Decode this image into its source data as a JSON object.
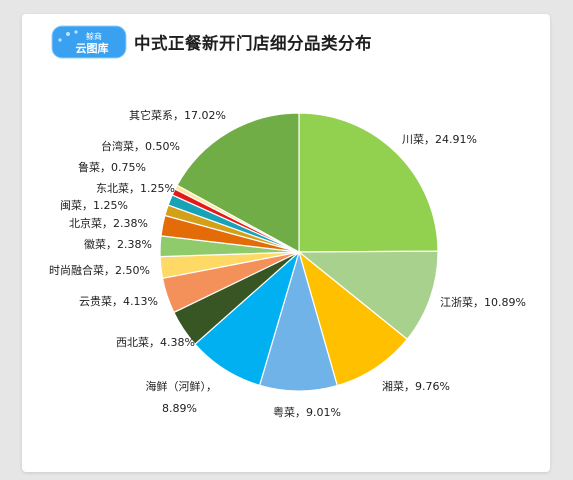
{
  "brand": {
    "line1": "鲸商",
    "line2": "云图库"
  },
  "chart_data": {
    "type": "pie",
    "title": "中式正餐新开门店细分品类分布",
    "slices": [
      {
        "name": "川菜",
        "value": 24.91,
        "label": "川菜，24.91%",
        "color": "#92d050"
      },
      {
        "name": "江浙菜",
        "value": 10.89,
        "label": "江浙菜，10.89%",
        "color": "#a9d18e"
      },
      {
        "name": "湘菜",
        "value": 9.76,
        "label": "湘菜，9.76%",
        "color": "#ffc000"
      },
      {
        "name": "粤菜",
        "value": 9.01,
        "label": "粤菜，9.01%",
        "color": "#6fb3e8"
      },
      {
        "name": "海鲜（河鲜）",
        "value": 8.89,
        "label": "海鲜（河鲜），",
        "label2": "8.89%",
        "color": "#00b0f0"
      },
      {
        "name": "西北菜",
        "value": 4.38,
        "label": "西北菜，4.38%",
        "color": "#375623"
      },
      {
        "name": "云贵菜",
        "value": 4.13,
        "label": "云贵菜，4.13%",
        "color": "#f4915a"
      },
      {
        "name": "时尚融合菜",
        "value": 2.5,
        "label": "时尚融合菜，2.50%",
        "color": "#ffd966"
      },
      {
        "name": "徽菜",
        "value": 2.38,
        "label": "徽菜，2.38%",
        "color": "#8fcb6a"
      },
      {
        "name": "北京菜",
        "value": 2.38,
        "label": "北京菜，2.38%",
        "color": "#e36c09"
      },
      {
        "name": "闽菜",
        "value": 1.25,
        "label": "闽菜，1.25%",
        "color": "#d4a017"
      },
      {
        "name": "东北菜",
        "value": 1.25,
        "label": "东北菜，1.25%",
        "color": "#17a2b8"
      },
      {
        "name": "鲁菜",
        "value": 0.75,
        "label": "鲁菜，0.75%",
        "color": "#e31a1c"
      },
      {
        "name": "台湾菜",
        "value": 0.5,
        "label": "台湾菜，0.50%",
        "color": "#ffe699"
      },
      {
        "name": "其它菜系",
        "value": 17.02,
        "label": "其它菜系，17.02%",
        "color": "#70ad47"
      }
    ]
  }
}
